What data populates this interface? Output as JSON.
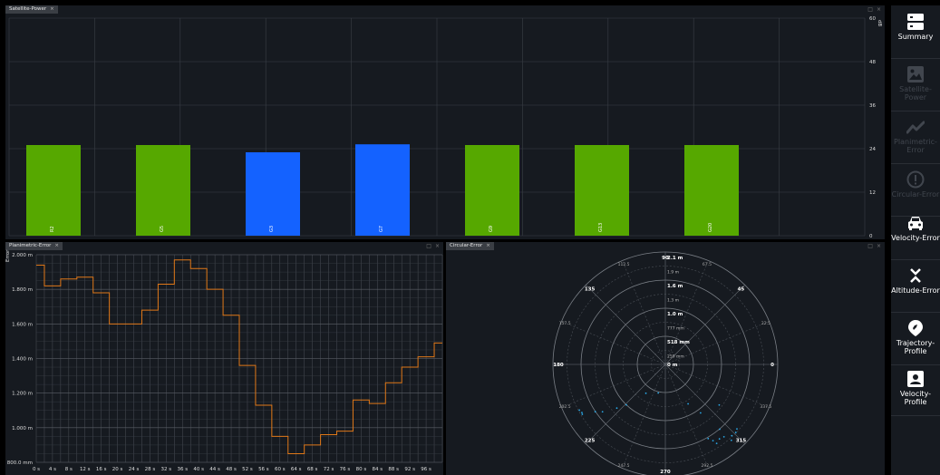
{
  "panels": {
    "satellite_power": {
      "title": "Satellite-Power"
    },
    "planimetric_error": {
      "title": "Planimetric-Error"
    },
    "circular_error": {
      "title": "Circular-Error"
    }
  },
  "colors": {
    "green": "#56a800",
    "blue": "#1462ff",
    "orange": "#e07818",
    "cyan": "#2aa9e8",
    "bg": "#161a20",
    "grid": "#3a3f46"
  },
  "chart_data": [
    {
      "type": "bar",
      "categories": [
        "R2",
        "G5",
        "G3",
        "G7",
        "G9",
        "G13",
        "G20"
      ],
      "values": [
        25,
        25,
        23,
        25.2,
        25,
        25,
        25
      ],
      "colors": [
        "#56a800",
        "#56a800",
        "#1462ff",
        "#1462ff",
        "#56a800",
        "#56a800",
        "#56a800"
      ],
      "ylabel": "dB",
      "ylim": [
        0,
        60
      ],
      "yticks": [
        "0",
        "12",
        "24",
        "36",
        "48",
        "60"
      ],
      "grid": true
    },
    {
      "type": "line",
      "ylabel": "Error",
      "ylim": [
        800,
        2000
      ],
      "xlim": [
        0,
        100
      ],
      "yticks": [
        "800.0 mm",
        "1.000 m",
        "1.200 m",
        "1.400 m",
        "1.600 m",
        "1.800 m",
        "2.000 m"
      ],
      "xticks": [
        "0 s",
        "4 s",
        "8 s",
        "12 s",
        "16 s",
        "20 s",
        "24 s",
        "28 s",
        "32 s",
        "36 s",
        "40 s",
        "44 s",
        "48 s",
        "52 s",
        "56 s",
        "60 s",
        "64 s",
        "68 s",
        "72 s",
        "76 s",
        "80 s",
        "84 s",
        "88 s",
        "92 s",
        "96 s"
      ],
      "x": [
        0,
        1,
        2,
        3,
        4,
        5,
        6,
        7,
        8,
        9,
        10,
        11,
        12,
        13,
        14,
        15,
        16,
        17,
        18,
        19,
        20,
        21,
        22,
        23,
        24,
        25,
        26,
        27,
        28,
        29,
        30,
        31,
        32,
        33,
        34,
        35,
        36,
        37,
        38,
        39,
        40,
        41,
        42,
        43,
        44,
        45,
        46,
        47,
        48,
        49,
        50,
        51,
        52,
        53,
        54,
        55,
        56,
        57,
        58,
        59,
        60,
        61,
        62,
        63,
        64,
        65,
        66,
        67,
        68,
        69,
        70,
        71,
        72,
        73,
        74,
        75,
        76,
        77,
        78,
        79,
        80,
        81,
        82,
        83,
        84,
        85,
        86,
        87,
        88,
        89,
        90,
        91,
        92,
        93,
        94,
        95,
        96,
        97,
        98,
        99,
        100
      ],
      "y": [
        1940,
        1940,
        1820,
        1820,
        1820,
        1820,
        1860,
        1860,
        1860,
        1860,
        1870,
        1870,
        1870,
        1870,
        1780,
        1780,
        1780,
        1780,
        1600,
        1600,
        1600,
        1600,
        1600,
        1600,
        1600,
        1600,
        1680,
        1680,
        1680,
        1680,
        1830,
        1830,
        1830,
        1830,
        1970,
        1970,
        1970,
        1970,
        1920,
        1920,
        1920,
        1920,
        1800,
        1800,
        1800,
        1800,
        1650,
        1650,
        1650,
        1650,
        1360,
        1360,
        1360,
        1360,
        1130,
        1130,
        1130,
        1130,
        950,
        950,
        950,
        950,
        850,
        850,
        850,
        850,
        900,
        900,
        900,
        900,
        960,
        960,
        960,
        960,
        980,
        980,
        980,
        980,
        1160,
        1160,
        1160,
        1160,
        1140,
        1140,
        1140,
        1140,
        1260,
        1260,
        1260,
        1260,
        1350,
        1350,
        1350,
        1350,
        1410,
        1410,
        1410,
        1410,
        1490,
        1490,
        1490
      ],
      "grid": true
    },
    {
      "type": "scatter",
      "polar": true,
      "radial_labels": [
        "0 m",
        "259 mm",
        "518 mm",
        "777 mm",
        "1.0 m",
        "1.3 m",
        "1.6 m",
        "1.9 m",
        "2.1 m"
      ],
      "angle_labels": [
        "0",
        "22.5",
        "45",
        "67.5",
        "90",
        "112.5",
        "135",
        "157.5",
        "180",
        "202.5",
        "225",
        "247.5",
        "270",
        "292.5",
        "315",
        "337.5"
      ],
      "points": [
        {
          "angle": 208,
          "r": 1.82
        },
        {
          "angle": 210,
          "r": 1.8
        },
        {
          "angle": 211,
          "r": 1.81
        },
        {
          "angle": 214,
          "r": 1.58
        },
        {
          "angle": 217,
          "r": 1.47
        },
        {
          "angle": 222,
          "r": 1.22
        },
        {
          "angle": 226,
          "r": 1.05
        },
        {
          "angle": 236,
          "r": 0.65
        },
        {
          "angle": 256,
          "r": 0.55
        },
        {
          "angle": 300,
          "r": 0.85
        },
        {
          "angle": 306,
          "r": 1.12
        },
        {
          "angle": 300,
          "r": 1.6
        },
        {
          "angle": 302,
          "r": 1.68
        },
        {
          "angle": 303,
          "r": 1.76
        },
        {
          "angle": 306,
          "r": 1.72
        },
        {
          "angle": 309,
          "r": 1.74
        },
        {
          "angle": 311,
          "r": 1.88
        },
        {
          "angle": 310,
          "r": 1.58
        },
        {
          "angle": 313,
          "r": 1.82
        },
        {
          "angle": 316,
          "r": 1.83
        },
        {
          "angle": 318,
          "r": 1.8
        },
        {
          "angle": 323,
          "r": 1.26
        }
      ]
    }
  ],
  "sidebar": {
    "items": [
      {
        "label": "Summary",
        "icon": "summary-icon",
        "enabled": true
      },
      {
        "label": "Satellite-Power",
        "icon": "image-icon",
        "enabled": false
      },
      {
        "label": "Planimetric-Error",
        "icon": "trend-icon",
        "enabled": false
      },
      {
        "label": "Circular-Error",
        "icon": "alert-circle-icon",
        "enabled": false
      },
      {
        "label": "Velocity-Error",
        "icon": "car-icon",
        "enabled": true
      },
      {
        "label": "Altitude-Error",
        "icon": "altitude-icon",
        "enabled": true
      },
      {
        "label": "Trajectory-Profile",
        "icon": "map-pin-icon",
        "enabled": true
      },
      {
        "label": "Velocity-Profile",
        "icon": "profile-icon",
        "enabled": true
      }
    ]
  }
}
